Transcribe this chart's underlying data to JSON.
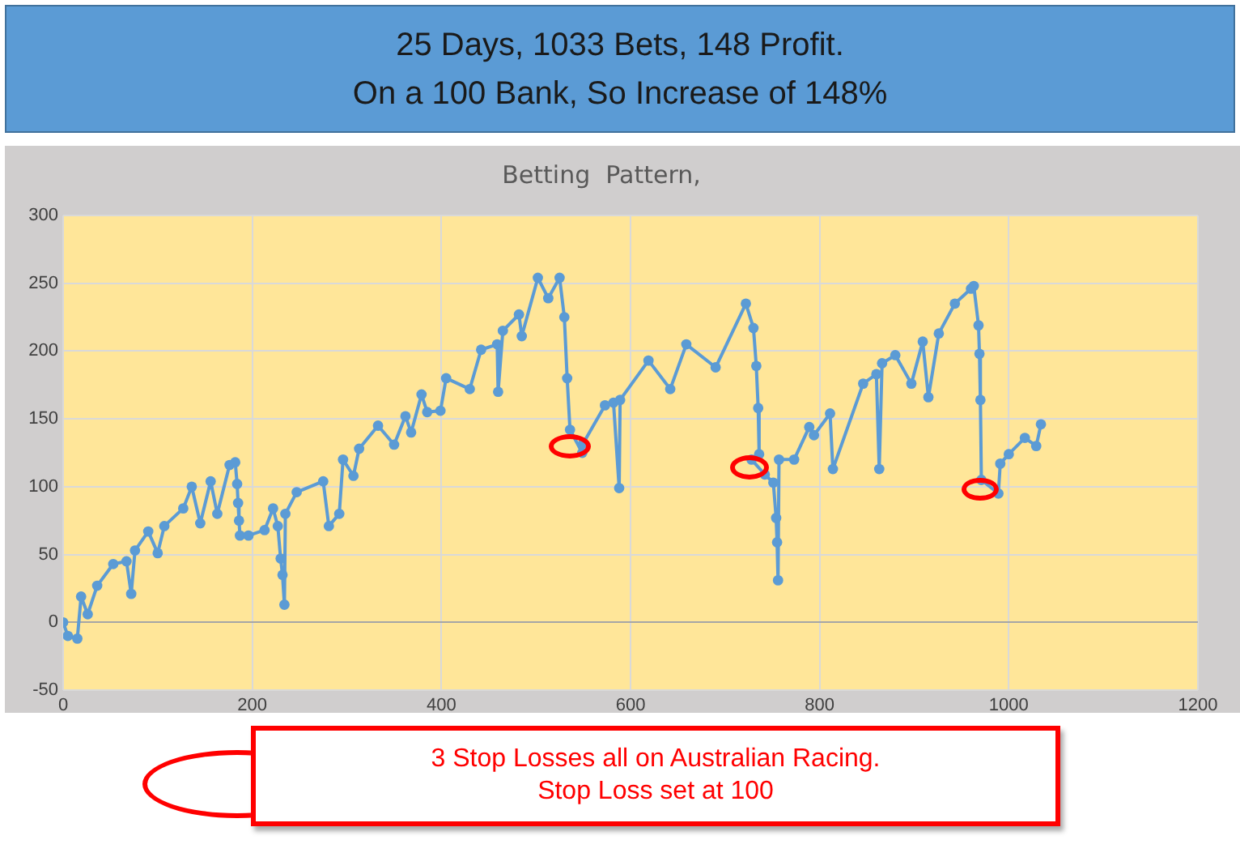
{
  "chart_data": {
    "type": "line",
    "title": "Betting  Pattern,",
    "x": [
      0,
      5,
      15,
      19,
      26,
      36,
      53,
      67,
      72,
      76,
      90,
      100,
      107,
      127,
      136,
      145,
      156,
      163,
      176,
      182,
      184,
      185,
      186,
      187,
      196,
      213,
      222,
      227,
      230,
      232,
      234,
      235,
      247,
      275,
      281,
      292,
      296,
      307,
      313,
      333,
      350,
      362,
      368,
      379,
      385,
      399,
      405,
      430,
      442,
      459,
      460,
      465,
      482,
      485,
      502,
      513,
      525,
      530,
      533,
      536,
      549,
      550,
      573,
      582,
      588,
      589,
      619,
      642,
      659,
      690,
      722,
      730,
      733,
      735,
      736,
      728,
      742,
      751,
      754,
      755,
      756,
      757,
      773,
      789,
      794,
      811,
      814,
      846,
      860,
      863,
      866,
      880,
      897,
      909,
      915,
      926,
      943,
      960,
      963,
      968,
      969,
      970,
      971,
      989,
      991,
      1000,
      1017,
      1029,
      1034
    ],
    "series": [
      {
        "color": "#5b9bd5",
        "values": [
          0,
          -10,
          -12,
          19,
          6,
          27,
          43,
          45,
          21,
          53,
          67,
          51,
          71,
          84,
          100,
          73,
          104,
          80,
          116,
          118,
          102,
          88,
          75,
          64,
          64,
          68,
          84,
          71,
          47,
          35,
          13,
          80,
          96,
          104,
          71,
          80,
          120,
          108,
          128,
          145,
          131,
          152,
          140,
          168,
          155,
          156,
          180,
          172,
          201,
          205,
          170,
          215,
          227,
          211,
          254,
          239,
          254,
          225,
          180,
          142,
          125,
          132,
          160,
          162,
          99,
          164,
          193,
          172,
          205,
          188,
          235,
          217,
          189,
          158,
          124,
          120,
          109,
          103,
          77,
          59,
          31,
          120,
          120,
          144,
          138,
          154,
          113,
          176,
          183,
          113,
          191,
          197,
          176,
          207,
          166,
          213,
          235,
          246,
          248,
          219,
          198,
          164,
          105,
          95,
          117,
          124,
          136,
          130,
          146
        ]
      }
    ],
    "xlim": [
      0,
      1200
    ],
    "xticks": [
      0,
      200,
      400,
      600,
      800,
      1000,
      1200
    ],
    "ylim": [
      -50,
      300
    ],
    "yticks": [
      -50,
      0,
      50,
      100,
      150,
      200,
      250,
      300
    ],
    "grid": true,
    "legend": false,
    "marker": "circle",
    "line_style": "solid",
    "annotations": [
      "25 Days, 1033 Bets, 148 Profit.\nOn a 100 Bank, So Increase of 148%",
      "3 Stop Losses all on Australian Racing.\nStop Loss set at 100"
    ]
  }
}
